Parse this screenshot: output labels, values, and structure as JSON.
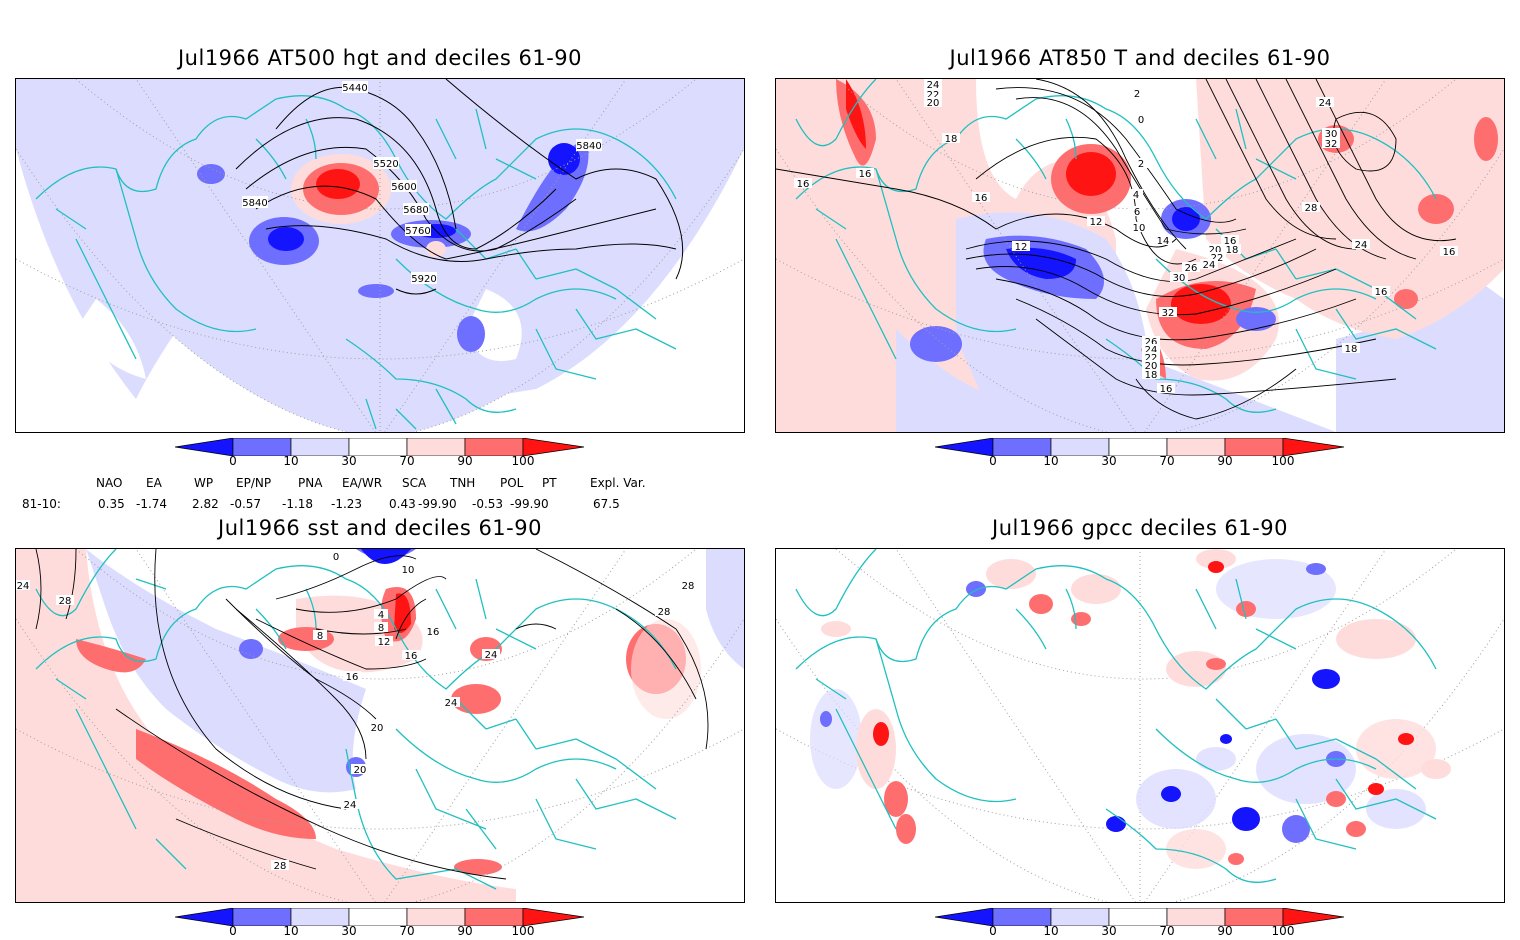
{
  "panels": [
    {
      "title": "Jul1966 AT500 hgt and deciles 61-90",
      "contour_labels": [
        "5440",
        "5520",
        "5600",
        "5680",
        "5760",
        "5840",
        "5840",
        "5920"
      ]
    },
    {
      "title": "Jul1966 AT850 T and deciles 61-90",
      "contour_labels": [
        "24",
        "22",
        "20",
        "18",
        "16",
        "16",
        "16",
        "2",
        "0",
        "2",
        "4",
        "6",
        "10",
        "12",
        "12",
        "14",
        "16",
        "18",
        "20",
        "22",
        "24",
        "26",
        "30",
        "32",
        "26",
        "24",
        "22",
        "20",
        "18",
        "16",
        "18",
        "16",
        "24",
        "28",
        "30",
        "32",
        "24",
        "16"
      ]
    },
    {
      "title": "Jul1966 sst and deciles 61-90",
      "contour_labels": [
        "0",
        "10",
        "4",
        "8",
        "8",
        "12",
        "16",
        "16",
        "16",
        "20",
        "20",
        "24",
        "24",
        "24",
        "28",
        "28",
        "28",
        "24",
        "28"
      ]
    },
    {
      "title": "Jul1966 gpcc deciles 61-90",
      "contour_labels": []
    }
  ],
  "colorbar": {
    "ticks": [
      "0",
      "10",
      "30",
      "70",
      "90",
      "100"
    ],
    "colors": [
      "#1414ff",
      "#6e6eff",
      "#dcdcff",
      "#ffffff",
      "#ffdcdc",
      "#ff6e6e",
      "#ff1414"
    ]
  },
  "indices": {
    "headers": [
      "NAO",
      "EA",
      "WP",
      "EP/NP",
      "PNA",
      "EA/WR",
      "SCA",
      "TNH",
      "POL",
      "PT",
      "Expl. Var."
    ],
    "row_label": "81-10:",
    "values": [
      "0.35",
      "-1.74",
      "2.82",
      "-0.57",
      "-1.18",
      "-1.23",
      "0.43",
      "-99.90",
      "-0.53",
      "-99.90",
      "67.5"
    ]
  },
  "colors": {
    "coast": "#20c0c0",
    "contour": "#000000",
    "grid": "#a0a0a0"
  }
}
